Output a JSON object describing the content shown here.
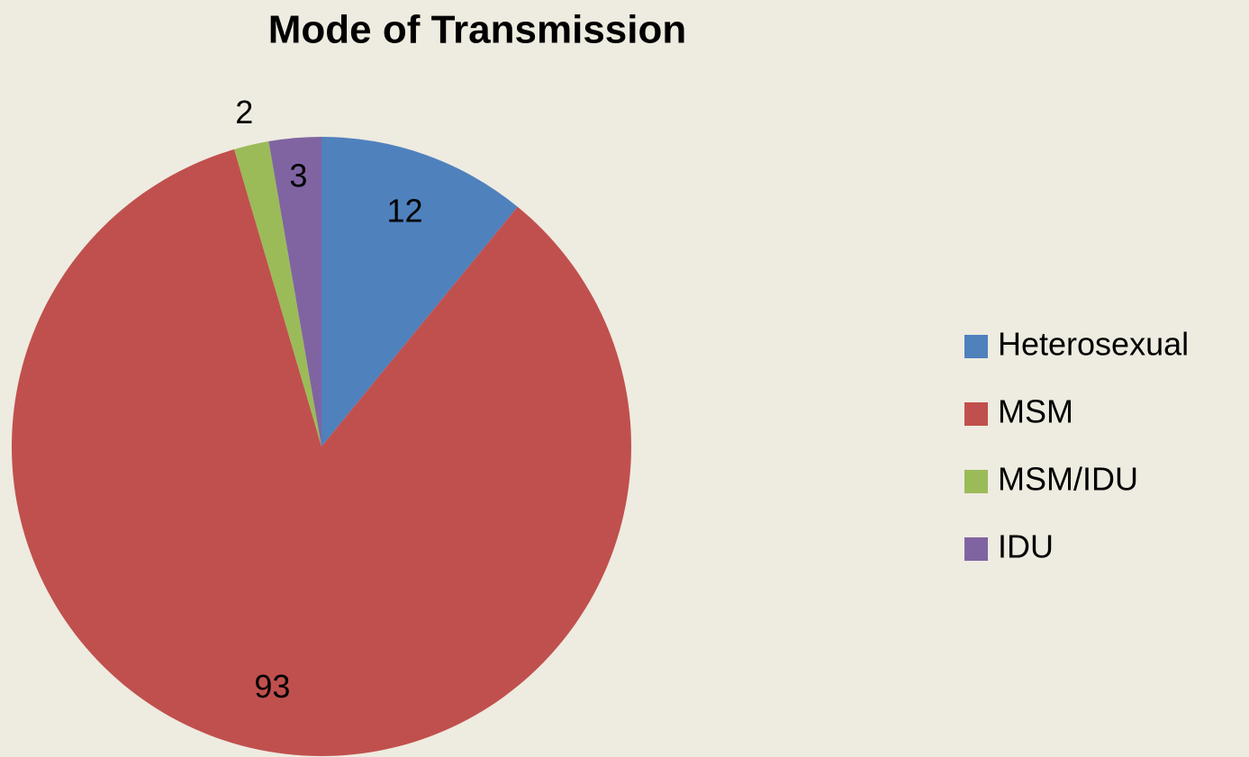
{
  "chart_data": {
    "type": "pie",
    "title": "Mode of Transmission",
    "categories": [
      "Heterosexual",
      "MSM",
      "MSM/IDU",
      "IDU"
    ],
    "values": [
      12,
      93,
      2,
      3
    ],
    "colors": [
      "#4f81bd",
      "#c0504d",
      "#9bbb59",
      "#8064a2"
    ],
    "legend": "right"
  }
}
